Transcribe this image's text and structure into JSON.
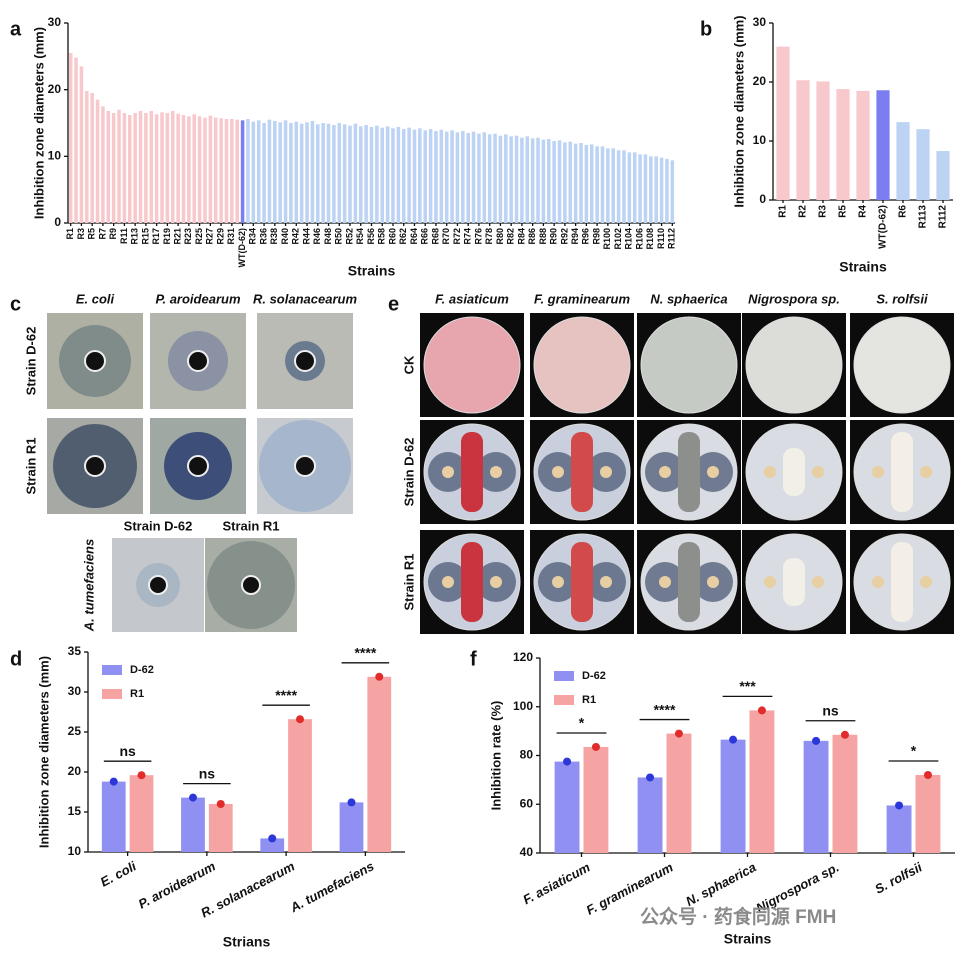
{
  "chart_data": [
    {
      "type": "bar",
      "panel": "a",
      "ylabel": "Inhibition zone diameters (mm)",
      "xlabel": "Strains",
      "categories": [
        "R1",
        null,
        "R3",
        null,
        "R5",
        null,
        "R7",
        null,
        "R9",
        null,
        "R11",
        null,
        "R13",
        null,
        "R15",
        null,
        "R17",
        null,
        "R19",
        null,
        "R21",
        null,
        "R23",
        null,
        "R25",
        null,
        "R27",
        null,
        "R29",
        null,
        "R31",
        null,
        "WT(D-62)",
        null,
        "R34",
        null,
        "R36",
        null,
        "R38",
        null,
        "R40",
        null,
        "R42",
        null,
        "R44",
        null,
        "R46",
        null,
        "R48",
        null,
        "R50",
        null,
        "R52",
        null,
        "R54",
        null,
        "R56",
        null,
        "R58",
        null,
        "R60",
        null,
        "R62",
        null,
        "R64",
        null,
        "R66",
        null,
        "R68",
        null,
        "R70",
        null,
        "R72",
        null,
        "R74",
        null,
        "R76",
        null,
        "R78",
        null,
        "R80",
        null,
        "R82",
        null,
        "R84",
        null,
        "R86",
        null,
        "R88",
        null,
        "R90",
        null,
        "R92",
        null,
        "R94",
        null,
        "R96",
        null,
        "R98",
        null,
        "R100",
        null,
        "R102",
        null,
        "R104",
        null,
        "R106",
        null,
        "R108",
        null,
        "R110",
        null,
        "R112"
      ],
      "values": [
        25.5,
        24.8,
        23.5,
        19.8,
        19.5,
        18.5,
        17.5,
        16.8,
        16.5,
        17.0,
        16.5,
        16.2,
        16.5,
        16.8,
        16.5,
        16.8,
        16.3,
        16.6,
        16.5,
        16.8,
        16.4,
        16.2,
        16.0,
        16.3,
        16.0,
        15.8,
        16.1,
        15.8,
        15.7,
        15.6,
        15.6,
        15.5,
        15.4,
        15.6,
        15.2,
        15.4,
        15.0,
        15.5,
        15.3,
        15.1,
        15.4,
        15.0,
        15.2,
        14.9,
        15.1,
        15.3,
        14.8,
        15.0,
        14.9,
        14.7,
        15.0,
        14.8,
        14.6,
        14.9,
        14.5,
        14.7,
        14.4,
        14.6,
        14.3,
        14.5,
        14.2,
        14.4,
        14.1,
        14.3,
        14.0,
        14.2,
        13.9,
        14.1,
        13.8,
        14.0,
        13.7,
        13.9,
        13.6,
        13.8,
        13.5,
        13.7,
        13.4,
        13.6,
        13.3,
        13.4,
        13.1,
        13.3,
        13.0,
        13.1,
        12.8,
        13.0,
        12.7,
        12.8,
        12.5,
        12.6,
        12.3,
        12.4,
        12.1,
        12.2,
        11.9,
        12.0,
        11.7,
        11.8,
        11.5,
        11.5,
        11.2,
        11.2,
        10.9,
        10.9,
        10.6,
        10.6,
        10.3,
        10.3,
        10.0,
        10.0,
        9.8,
        9.6,
        9.4
      ],
      "highlight_category": "WT(D-62)",
      "colors": {
        "before": "#f8c9cc",
        "highlight": "#7d7df2",
        "after": "#bcd3f4"
      },
      "ylim": [
        0,
        30
      ],
      "yticks": [
        0,
        10,
        20,
        30
      ]
    },
    {
      "type": "bar",
      "panel": "b",
      "ylabel": "Inhibition zone diameters (mm)",
      "xlabel": "Strains",
      "categories": [
        "R1",
        "R2",
        "R3",
        "R5",
        "R4",
        "WT(D-62)",
        "R6",
        "R113",
        "R112"
      ],
      "values": [
        26.0,
        20.3,
        20.1,
        18.8,
        18.5,
        18.6,
        13.2,
        12.0,
        8.3
      ],
      "highlight_category": "WT(D-62)",
      "colors": {
        "before": "#f8c9cc",
        "highlight": "#7d7df2",
        "after": "#bcd3f4"
      },
      "ylim": [
        0,
        30
      ],
      "yticks": [
        0,
        10,
        20,
        30
      ]
    },
    {
      "type": "grouped_bar",
      "panel": "d",
      "ylabel": "Inhibition zone diameters (mm)",
      "xlabel": "Strians",
      "categories": [
        "E. coli",
        "P. aroidearum",
        "R. solanacearum",
        "A. tumefaciens"
      ],
      "series": [
        {
          "name": "D-62",
          "color": "#8f90f2",
          "values": [
            18.8,
            16.8,
            11.7,
            16.2
          ]
        },
        {
          "name": "R1",
          "color": "#f5a3a3",
          "values": [
            19.6,
            16.0,
            26.6,
            31.9
          ]
        }
      ],
      "annotations": [
        "ns",
        "ns",
        "****",
        "****"
      ],
      "ylim": [
        10,
        35
      ],
      "yticks": [
        10,
        15,
        20,
        25,
        30,
        35
      ]
    },
    {
      "type": "grouped_bar",
      "panel": "f",
      "ylabel": "Inhibition rate (%)",
      "xlabel": "Strains",
      "categories": [
        "F. asiaticum",
        "F. graminearum",
        "N. sphaerica",
        "Nigrospora sp.",
        "S. rolfsii"
      ],
      "series": [
        {
          "name": "D-62",
          "color": "#8f90f2",
          "values": [
            77.5,
            71.0,
            86.5,
            86.0,
            59.5
          ]
        },
        {
          "name": "R1",
          "color": "#f5a3a3",
          "values": [
            83.5,
            89.0,
            98.5,
            88.5,
            72.0
          ]
        }
      ],
      "annotations": [
        "*",
        "****",
        "***",
        "ns",
        "*"
      ],
      "ylim": [
        40,
        120
      ],
      "yticks": [
        40,
        60,
        80,
        100,
        120
      ]
    }
  ],
  "photo_c": {
    "panel": "c",
    "columns": [
      "E. coli",
      "P. aroidearum",
      "R. solanacearum"
    ],
    "rows": [
      "Strain D-62",
      "Strain R1"
    ],
    "bottom_columns": [
      "Strain D-62",
      "Strain R1"
    ],
    "bottom_row": "A. tumefaciens"
  },
  "photo_e": {
    "panel": "e",
    "columns": [
      "F. asiaticum",
      "F. graminearum",
      "N. sphaerica",
      "Nigrospora sp.",
      "S. rolfsii"
    ],
    "rows": [
      "CK",
      "Strain D-62",
      "Strain R1"
    ]
  },
  "watermark": "公众号 · 药食同源 FMH"
}
